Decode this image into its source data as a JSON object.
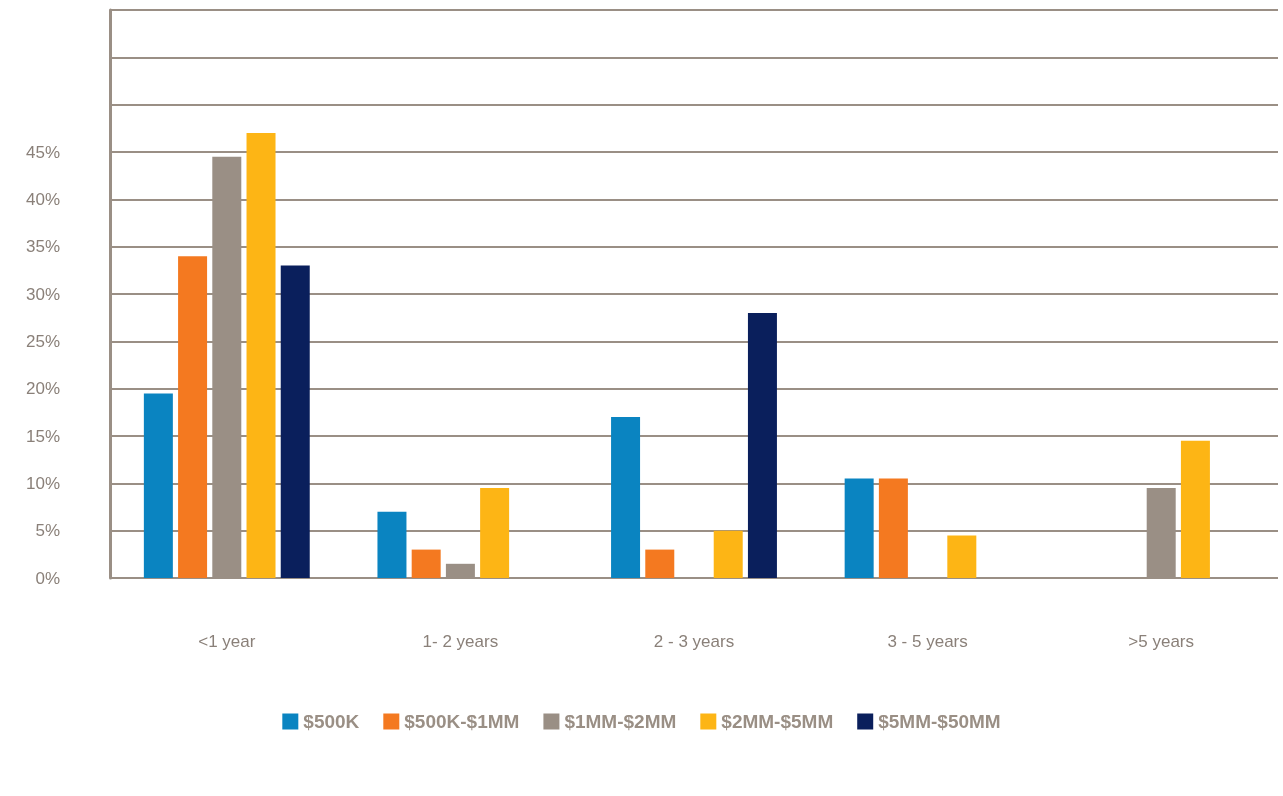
{
  "chart_data": {
    "type": "bar",
    "categories": [
      "<1 year",
      "1- 2 years",
      "2 - 3 years",
      "3 - 5 years",
      ">5 years"
    ],
    "series": [
      {
        "name": "$500K",
        "color": "#0a84c1",
        "values": [
          19.5,
          7,
          17,
          10.5,
          null
        ]
      },
      {
        "name": "$500K-$1MM",
        "color": "#f47920",
        "values": [
          34,
          3,
          3,
          10.5,
          null
        ]
      },
      {
        "name": "$1MM-$2MM",
        "color": "#9a8f85",
        "values": [
          44.5,
          1.5,
          null,
          null,
          9.5
        ]
      },
      {
        "name": "$2MM-$5MM",
        "color": "#fdb515",
        "values": [
          47,
          9.5,
          5,
          4.5,
          14.5
        ]
      },
      {
        "name": "$5MM-$50MM",
        "color": "#0a1f5c",
        "values": [
          33,
          null,
          28,
          null,
          null
        ]
      }
    ],
    "ylim": [
      0,
      60
    ],
    "yticks": [
      {
        "value": 0,
        "label": "0%"
      },
      {
        "value": 5,
        "label": "5%"
      },
      {
        "value": 10,
        "label": "10%"
      },
      {
        "value": 15,
        "label": "15%"
      },
      {
        "value": 20,
        "label": "20%"
      },
      {
        "value": 25,
        "label": "25%"
      },
      {
        "value": 30,
        "label": "30%"
      },
      {
        "value": 35,
        "label": "35%"
      },
      {
        "value": 40,
        "label": "40%"
      },
      {
        "value": 45,
        "label": "45%"
      },
      {
        "value": 50,
        "label": null
      },
      {
        "value": 55,
        "label": null
      },
      {
        "value": 60,
        "label": null
      }
    ],
    "grid": "y",
    "legend": "bottom"
  }
}
